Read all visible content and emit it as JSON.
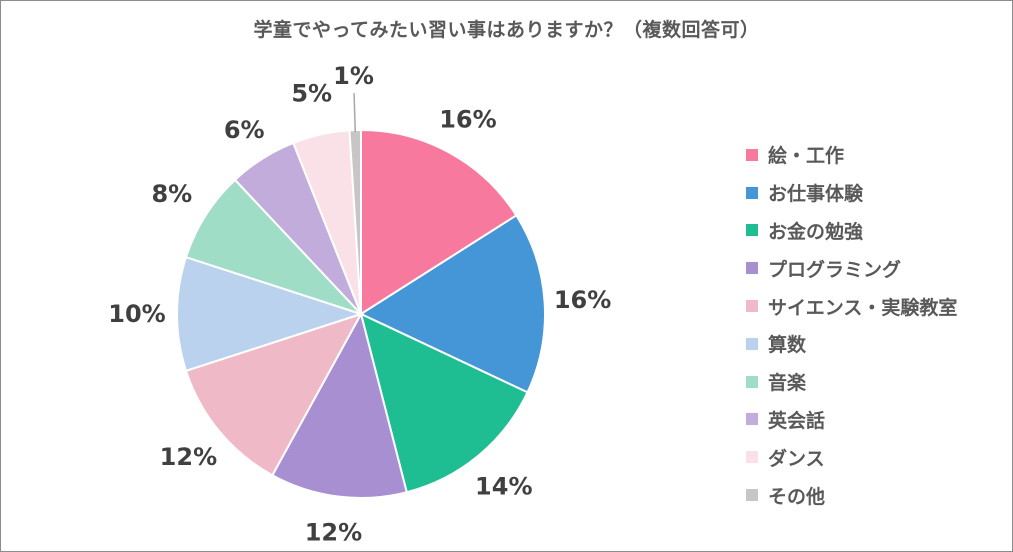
{
  "chart_data": {
    "type": "pie",
    "title": "学童でやってみたい習い事はありますか？（複数回答可）",
    "legend_position": "right",
    "categories": [
      "絵・工作",
      "お仕事体験",
      "お金の勉強",
      "プログラミング",
      "サイエンス・実験教室",
      "算数",
      "音楽",
      "英会話",
      "ダンス",
      "その他"
    ],
    "values": [
      16,
      16,
      14,
      12,
      12,
      10,
      8,
      6,
      5,
      1
    ],
    "labels": [
      "16%",
      "16%",
      "14%",
      "12%",
      "12%",
      "10%",
      "8%",
      "6%",
      "5%",
      "1%"
    ],
    "colors": [
      "#f77a9e",
      "#4496d6",
      "#1fbe92",
      "#a88fd2",
      "#f0b9c7",
      "#bad2ee",
      "#9fddc6",
      "#c1acdc",
      "#f9e1e7",
      "#c6c6c6"
    ],
    "unit": "%"
  }
}
